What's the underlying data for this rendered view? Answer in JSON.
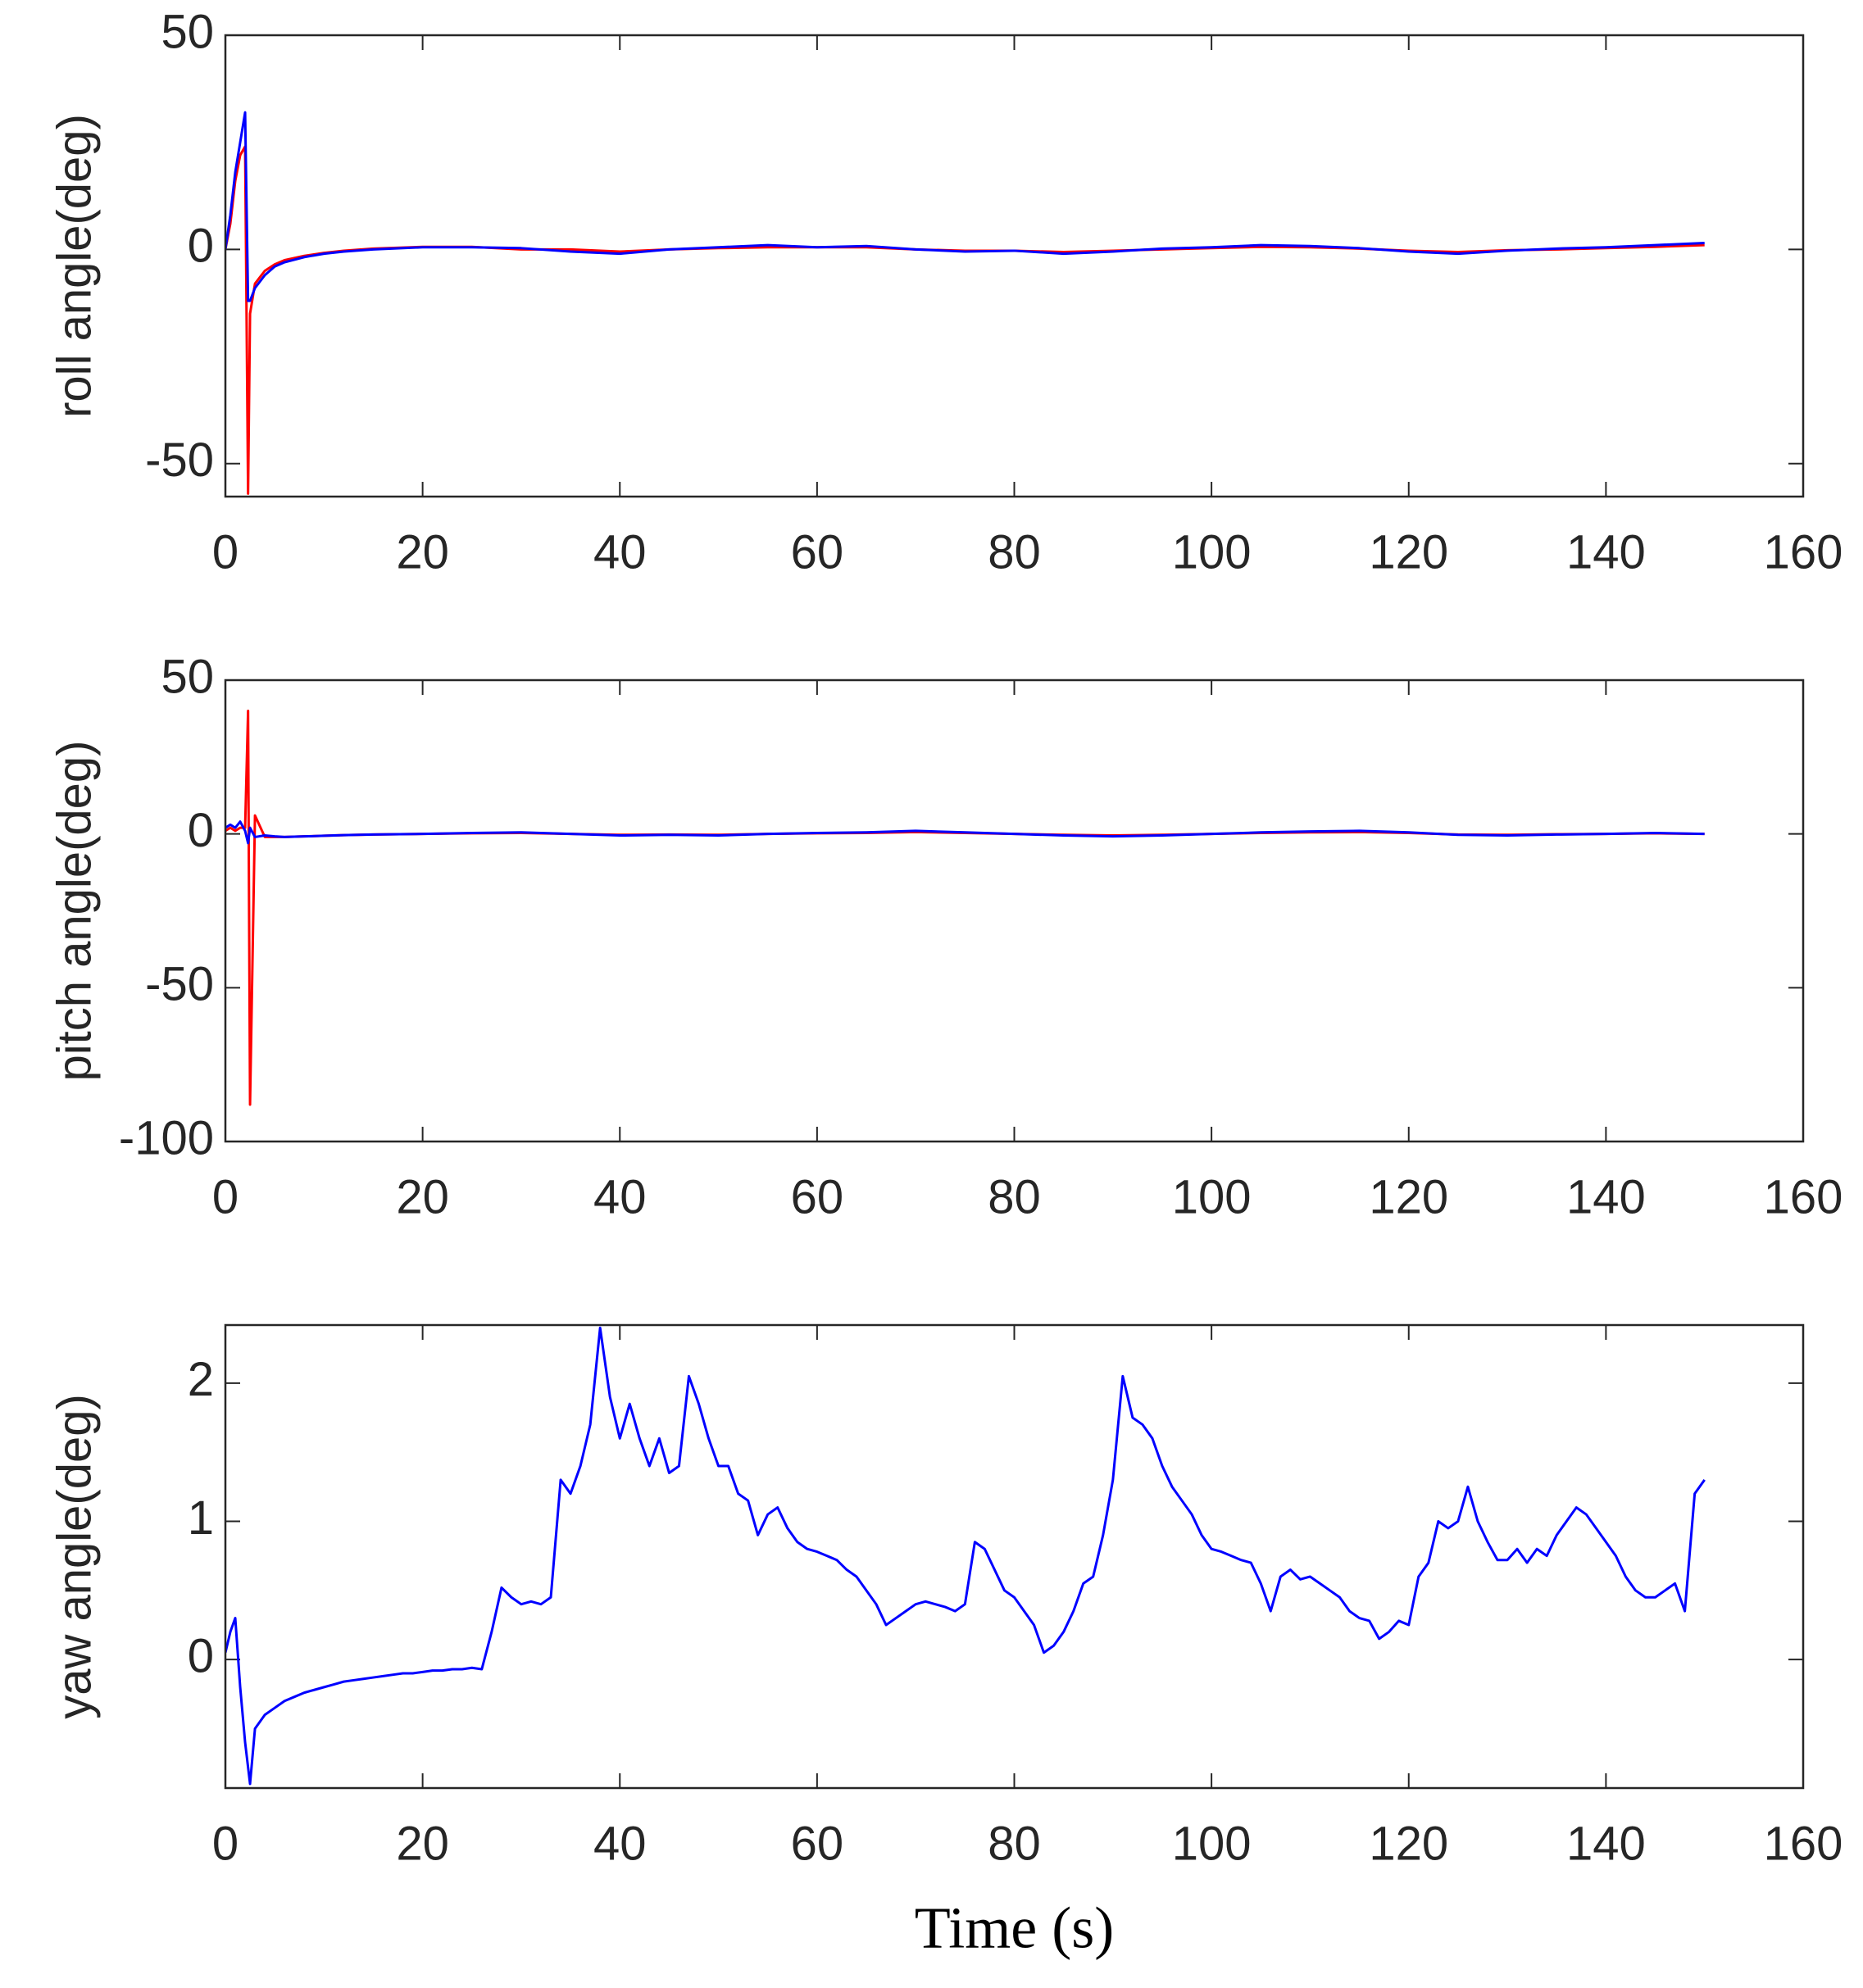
{
  "chart_data": [
    {
      "type": "line",
      "ylabel": "roll angle(deg)",
      "x": [
        0,
        0.5,
        1,
        1.5,
        2,
        2.3,
        2.5,
        3,
        4,
        5,
        6,
        8,
        10,
        12,
        15,
        20,
        25,
        30,
        35,
        40,
        45,
        50,
        55,
        60,
        65,
        70,
        75,
        80,
        85,
        90,
        95,
        100,
        105,
        110,
        115,
        120,
        125,
        130,
        135,
        140,
        145,
        150
      ],
      "series": [
        {
          "color": "#ff0000",
          "values": [
            0,
            6,
            16,
            22,
            24,
            -57,
            -15,
            -8,
            -5,
            -3.5,
            -2.5,
            -1.5,
            -0.8,
            -0.3,
            0.2,
            0.6,
            0.6,
            0,
            0,
            -0.5,
            0,
            0.3,
            0.5,
            0.5,
            0.5,
            0,
            -0.3,
            -0.3,
            -0.6,
            -0.3,
            0,
            0.3,
            0.6,
            0.5,
            0.2,
            -0.3,
            -0.6,
            -0.2,
            0,
            0.3,
            0.6,
            1
          ]
        },
        {
          "color": "#0000ff",
          "values": [
            0,
            8,
            18,
            25,
            32,
            -12,
            -12,
            -9,
            -6,
            -4,
            -3,
            -1.8,
            -1,
            -0.5,
            0,
            0.5,
            0.5,
            0.3,
            -0.5,
            -1,
            0,
            0.5,
            1,
            0.5,
            0.8,
            0,
            -0.5,
            -0.3,
            -1,
            -0.5,
            0.2,
            0.5,
            1,
            0.8,
            0.3,
            -0.5,
            -1,
            -0.3,
            0.2,
            0.5,
            1,
            1.5
          ]
        }
      ],
      "xlim": [
        0,
        160
      ],
      "xticks": [
        0,
        20,
        40,
        60,
        80,
        100,
        120,
        140,
        160
      ],
      "ylim": [
        -57.7,
        50
      ],
      "yticks": [
        -50,
        0,
        50
      ]
    },
    {
      "type": "line",
      "ylabel": "pitch angle(deg)",
      "x": [
        0,
        0.5,
        1,
        1.5,
        2,
        2.3,
        2.5,
        3,
        4,
        5,
        6,
        8,
        10,
        12,
        15,
        20,
        25,
        30,
        35,
        40,
        45,
        50,
        55,
        60,
        65,
        70,
        75,
        80,
        85,
        90,
        95,
        100,
        105,
        110,
        115,
        120,
        125,
        130,
        135,
        140,
        145,
        150
      ],
      "series": [
        {
          "color": "#ff0000",
          "values": [
            1,
            2,
            1,
            2,
            2,
            40,
            -88,
            6,
            -1,
            -1,
            -1,
            -0.8,
            -0.6,
            -0.4,
            -0.2,
            0,
            0.2,
            0.3,
            0,
            -0.3,
            -0.2,
            -0.3,
            0,
            0.2,
            0.3,
            0.6,
            0.3,
            0,
            -0.3,
            -0.5,
            -0.3,
            0,
            0.3,
            0.5,
            0.6,
            0.3,
            -0.2,
            -0.3,
            -0.1,
            0,
            0.2,
            0
          ]
        },
        {
          "color": "#0000ff",
          "values": [
            2,
            3,
            2,
            4,
            1,
            -3,
            2,
            -1,
            -0.5,
            -0.8,
            -1,
            -0.8,
            -0.6,
            -0.4,
            -0.2,
            0,
            0.3,
            0.5,
            0,
            -0.5,
            -0.3,
            -0.5,
            0,
            0.3,
            0.5,
            1,
            0.5,
            0,
            -0.5,
            -0.8,
            -0.5,
            0,
            0.5,
            0.8,
            1,
            0.5,
            -0.3,
            -0.5,
            -0.2,
            0,
            0.3,
            0
          ]
        }
      ],
      "xlim": [
        0,
        160
      ],
      "xticks": [
        0,
        20,
        40,
        60,
        80,
        100,
        120,
        140,
        160
      ],
      "ylim": [
        -100,
        50
      ],
      "yticks": [
        -100,
        -50,
        0,
        50
      ]
    },
    {
      "type": "line",
      "ylabel": "yaw angle(deg)",
      "xlabel": "Time (s)",
      "x": [
        0,
        0.5,
        1,
        1.5,
        2,
        2.5,
        3,
        4,
        5,
        6,
        7,
        8,
        9,
        10,
        11,
        12,
        13,
        14,
        15,
        16,
        17,
        18,
        19,
        20,
        21,
        22,
        23,
        24,
        25,
        26,
        27,
        28,
        29,
        30,
        31,
        32,
        33,
        34,
        35,
        36,
        37,
        38,
        39,
        40,
        41,
        42,
        43,
        44,
        45,
        46,
        47,
        48,
        49,
        50,
        51,
        52,
        53,
        54,
        55,
        56,
        57,
        58,
        59,
        60,
        61,
        62,
        63,
        64,
        65,
        66,
        67,
        68,
        69,
        70,
        71,
        72,
        73,
        74,
        75,
        76,
        77,
        78,
        79,
        80,
        81,
        82,
        83,
        84,
        85,
        86,
        87,
        88,
        89,
        90,
        91,
        92,
        93,
        94,
        95,
        96,
        97,
        98,
        99,
        100,
        101,
        102,
        103,
        104,
        105,
        106,
        107,
        108,
        109,
        110,
        111,
        112,
        113,
        114,
        115,
        116,
        117,
        118,
        119,
        120,
        121,
        122,
        123,
        124,
        125,
        126,
        127,
        128,
        129,
        130,
        131,
        132,
        133,
        134,
        135,
        136,
        137,
        138,
        139,
        140,
        141,
        142,
        143,
        144,
        145,
        146,
        147,
        148,
        149,
        150
      ],
      "series": [
        {
          "color": "#0000ff",
          "values": [
            0.05,
            0.2,
            0.3,
            -0.2,
            -0.6,
            -0.9,
            -0.5,
            -0.4,
            -0.35,
            -0.3,
            -0.27,
            -0.24,
            -0.22,
            -0.2,
            -0.18,
            -0.16,
            -0.15,
            -0.14,
            -0.13,
            -0.12,
            -0.11,
            -0.1,
            -0.1,
            -0.09,
            -0.08,
            -0.08,
            -0.07,
            -0.07,
            -0.06,
            -0.07,
            0.2,
            0.52,
            0.45,
            0.4,
            0.42,
            0.4,
            0.45,
            1.3,
            1.2,
            1.4,
            1.7,
            2.4,
            1.9,
            1.6,
            1.85,
            1.6,
            1.4,
            1.6,
            1.35,
            1.4,
            2.05,
            1.85,
            1.6,
            1.4,
            1.4,
            1.2,
            1.15,
            0.9,
            1.05,
            1.1,
            0.95,
            0.85,
            0.8,
            0.78,
            0.75,
            0.72,
            0.65,
            0.6,
            0.5,
            0.4,
            0.25,
            0.3,
            0.35,
            0.4,
            0.42,
            0.4,
            0.38,
            0.35,
            0.4,
            0.85,
            0.8,
            0.65,
            0.5,
            0.45,
            0.35,
            0.25,
            0.05,
            0.1,
            0.2,
            0.35,
            0.55,
            0.6,
            0.9,
            1.3,
            2.05,
            1.75,
            1.7,
            1.6,
            1.4,
            1.25,
            1.15,
            1.05,
            0.9,
            0.8,
            0.78,
            0.75,
            0.72,
            0.7,
            0.55,
            0.35,
            0.6,
            0.65,
            0.58,
            0.6,
            0.55,
            0.5,
            0.45,
            0.35,
            0.3,
            0.28,
            0.15,
            0.2,
            0.28,
            0.25,
            0.6,
            0.7,
            1.0,
            0.95,
            1.0,
            1.25,
            1.0,
            0.85,
            0.72,
            0.72,
            0.8,
            0.7,
            0.8,
            0.75,
            0.9,
            1.0,
            1.1,
            1.05,
            0.95,
            0.85,
            0.75,
            0.6,
            0.5,
            0.45,
            0.45,
            0.5,
            0.55,
            0.35,
            1.2,
            1.3
          ]
        }
      ],
      "xlim": [
        0,
        160
      ],
      "xticks": [
        0,
        20,
        40,
        60,
        80,
        100,
        120,
        140,
        160
      ],
      "ylim": [
        -0.93,
        2.42
      ],
      "yticks": [
        0,
        1,
        2
      ]
    }
  ]
}
